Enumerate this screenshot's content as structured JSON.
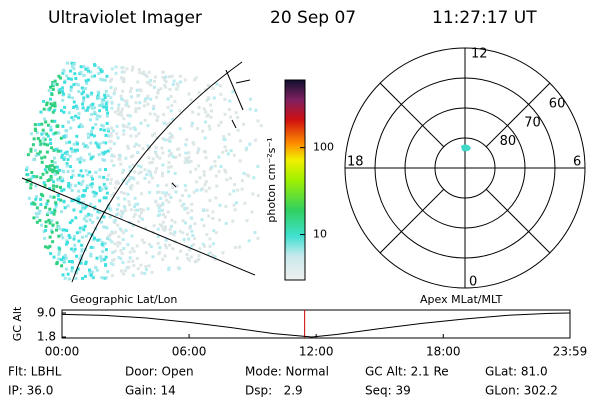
{
  "header": {
    "title": "Ultraviolet Imager",
    "date": "20 Sep 07",
    "time": "11:27:17 UT"
  },
  "colorbar": {
    "label": "photon cm⁻²s⁻¹",
    "log": true,
    "lim": [
      3,
      600
    ],
    "ticks": [
      10,
      100
    ]
  },
  "polar": {
    "rlim": [
      90,
      50
    ],
    "rticks": [
      60,
      70,
      80
    ],
    "mlt_labels": {
      "top": "12",
      "right": "6",
      "bottom": "0",
      "left": "18"
    }
  },
  "timeline": {
    "left_label": "Geographic Lat/Lon",
    "right_label": "Apex MLat/MLT",
    "ylabel": "GC Alt",
    "ylim": [
      1.8,
      9.0
    ],
    "yticks": [
      {
        "value": 9.0,
        "label": "9.0"
      },
      1.8
    ],
    "xlim": [
      0,
      23.983
    ],
    "xticks": [
      {
        "value": 0,
        "label": "00:00"
      },
      {
        "value": 6,
        "label": "06:00"
      },
      {
        "value": 12,
        "label": "12:00"
      },
      {
        "value": 18,
        "label": "18:00"
      },
      {
        "value": 23.983,
        "label": "23:59"
      }
    ],
    "x": [
      0,
      2,
      4,
      6,
      8,
      10,
      11.8,
      13,
      15,
      17,
      19,
      21,
      23,
      23.983
    ],
    "values": [
      8.6,
      8.3,
      7.5,
      6.2,
      4.6,
      2.8,
      1.8,
      2.6,
      4.3,
      5.9,
      7.2,
      8.3,
      8.9,
      9.0
    ],
    "marker": 11.455,
    "marker_color": "#d00000"
  },
  "info": {
    "rows": [
      [
        "Flt: LBHL",
        "Door: Open",
        "Mode: Normal",
        "GC Alt: 2.1 Re",
        "GLat: 81.0"
      ],
      [
        "IP: 36.0",
        "Gain: 14",
        "Dsp:   2.9",
        "Seq: 39",
        "GLon: 302.2"
      ]
    ]
  }
}
